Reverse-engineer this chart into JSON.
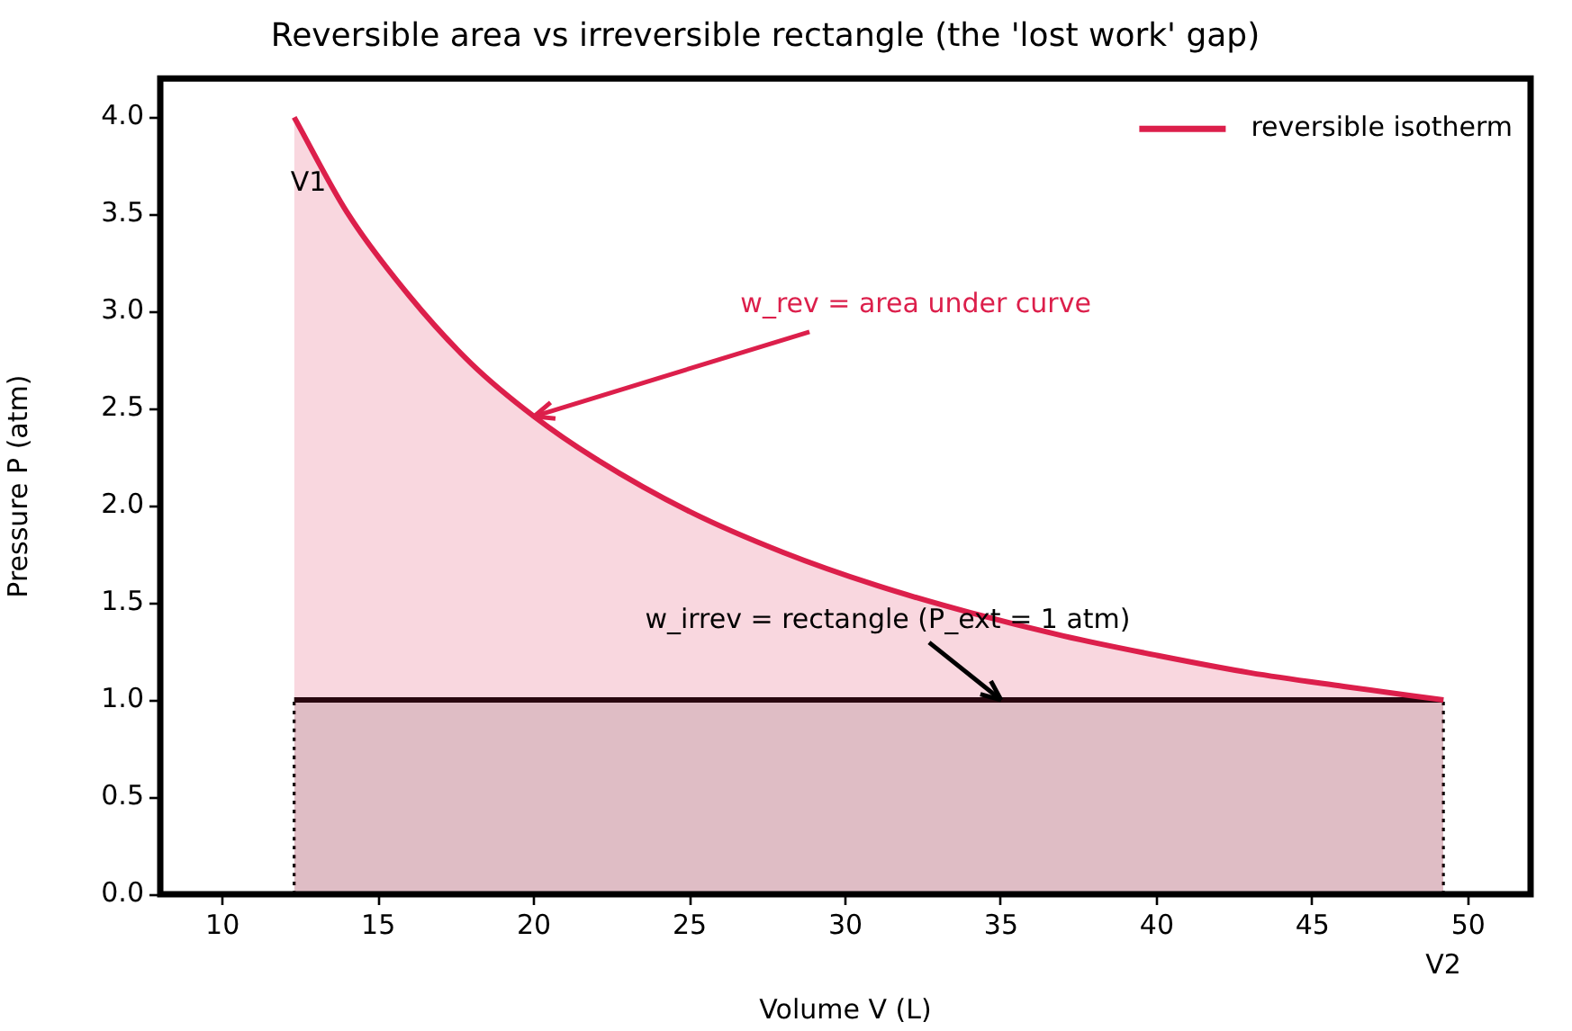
{
  "chart_data": {
    "type": "area",
    "title": "Reversible area vs irreversible rectangle (the 'lost work' gap)",
    "xlabel": "Volume V (L)",
    "ylabel": "Pressure P (atm)",
    "xlim": [
      8,
      52
    ],
    "ylim": [
      0,
      4.2
    ],
    "xticks": [
      10,
      15,
      20,
      25,
      30,
      35,
      40,
      45,
      50
    ],
    "yticks": [
      {
        "value": 0,
        "label": "0.0"
      },
      {
        "value": 0.5,
        "label": "0.5"
      },
      {
        "value": 1,
        "label": "1.0"
      },
      {
        "value": 1.5,
        "label": "1.5"
      },
      {
        "value": 2,
        "label": "2.0"
      },
      {
        "value": 2.5,
        "label": "2.5"
      },
      {
        "value": 3,
        "label": "3.0"
      },
      {
        "value": 3.5,
        "label": "3.5"
      },
      {
        "value": 4,
        "label": "4.0"
      }
    ],
    "series": [
      {
        "name": "reversible isotherm",
        "color": "#dc1f4b",
        "x": [
          12.3,
          14,
          16,
          18,
          20,
          22,
          25,
          28,
          31,
          34,
          37,
          40,
          43,
          46,
          49.2
        ],
        "values": [
          4.0,
          3.51,
          3.08,
          2.73,
          2.46,
          2.24,
          1.97,
          1.76,
          1.59,
          1.45,
          1.33,
          1.23,
          1.14,
          1.07,
          1.0
        ]
      },
      {
        "color": "#000000",
        "x": [
          12.3,
          49.2
        ],
        "values": [
          1,
          1
        ]
      },
      {
        "type": "line",
        "color": "#000000",
        "line_style": "dotted",
        "x": [
          12.3,
          12.3
        ],
        "values": [
          0,
          1
        ]
      },
      {
        "type": "line",
        "color": "#000000",
        "line_style": "dotted",
        "x": [
          49.2,
          49.2
        ],
        "values": [
          0,
          1
        ]
      }
    ],
    "annotations": [
      {
        "text": "V1",
        "x": 12.3,
        "y": 4.0
      },
      {
        "text": "V2",
        "x": 49.2,
        "y": 0
      },
      {
        "text": "w_rev = area under curve",
        "x": 20,
        "y": 2.46
      },
      {
        "text": "w_irrev = rectangle (P_ext = 1 atm)",
        "x": 35,
        "y": 1.0
      }
    ],
    "legend": "top right",
    "marker": "none",
    "grid": false
  }
}
